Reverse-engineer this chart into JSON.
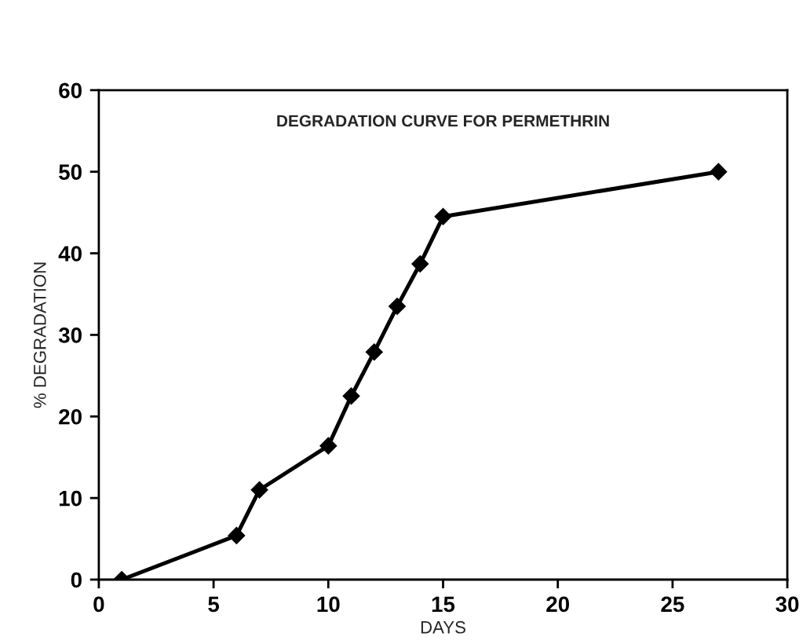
{
  "chart_data": {
    "type": "line",
    "title": "DEGRADATION CURVE FOR PERMETHRIN",
    "xlabel": "DAYS",
    "ylabel": "% DEGRADATION",
    "x": [
      1,
      6,
      7,
      10,
      11,
      12,
      13,
      14,
      15,
      27
    ],
    "series": [
      {
        "color": "#000000",
        "values": [
          0,
          5.4,
          11,
          16.4,
          22.5,
          27.9,
          33.5,
          38.7,
          44.5,
          50
        ]
      }
    ],
    "xlim": [
      0,
      30
    ],
    "ylim": [
      0,
      60
    ],
    "xticks": [
      0,
      5,
      10,
      15,
      20,
      25,
      30
    ],
    "yticks": [
      0,
      10,
      20,
      30,
      40,
      50,
      60
    ],
    "grid": false,
    "legend": false,
    "marker": "diamond",
    "line_style": "solid"
  }
}
